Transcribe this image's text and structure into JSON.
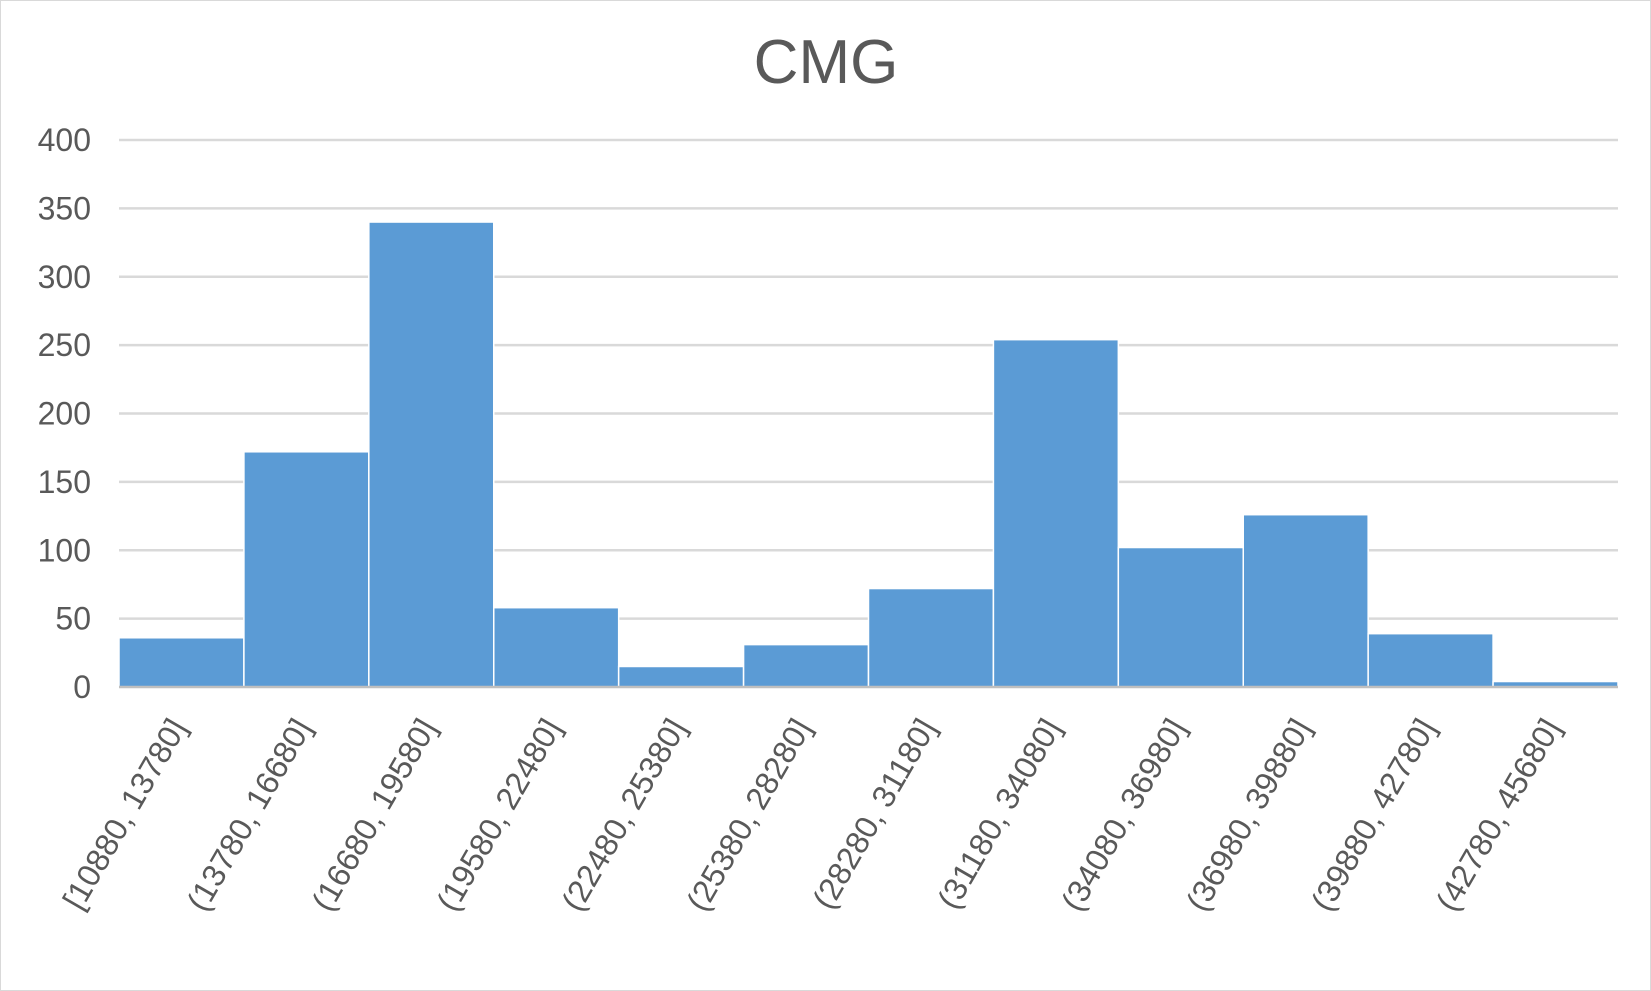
{
  "chart_data": {
    "type": "bar",
    "title": "CMG",
    "xlabel": "",
    "ylabel": "",
    "categories": [
      "[10880, 13780]",
      "(13780, 16680]",
      "(16680, 19580]",
      "(19580, 22480]",
      "(22480, 25380]",
      "(25380, 28280]",
      "(28280, 31180]",
      "(31180, 34080]",
      "(34080, 36980]",
      "(36980, 39880]",
      "(39880, 42780]",
      "(42780, 45680]"
    ],
    "values": [
      36,
      172,
      340,
      58,
      15,
      31,
      72,
      254,
      102,
      126,
      39,
      4
    ],
    "ylim": [
      0,
      400
    ],
    "yticks": [
      "0",
      "50",
      "100",
      "150",
      "200",
      "250",
      "300",
      "350",
      "400"
    ],
    "grid": true,
    "legend": "none",
    "bar_color": "#5b9bd5"
  }
}
